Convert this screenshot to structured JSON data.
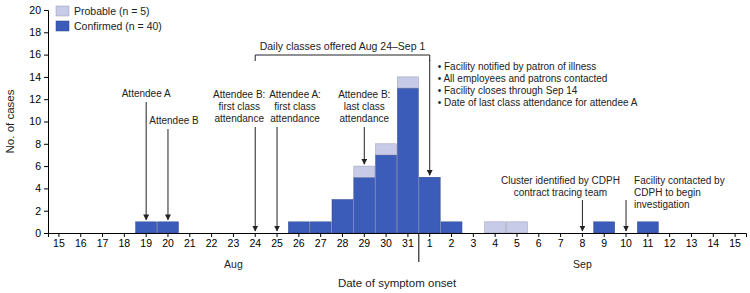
{
  "chart_data": {
    "type": "bar",
    "stacked": true,
    "legend": "upper left",
    "x_label": "Date of symptom onset",
    "y_label": "No. of cases",
    "categories": [
      "15",
      "16",
      "17",
      "18",
      "19",
      "20",
      "21",
      "22",
      "23",
      "24",
      "25",
      "26",
      "27",
      "28",
      "29",
      "30",
      "31",
      "1",
      "2",
      "3",
      "4",
      "5",
      "6",
      "7",
      "8",
      "9",
      "10",
      "11",
      "12",
      "13",
      "14",
      "15"
    ],
    "x_groups": [
      "Aug",
      "Sep"
    ],
    "series": [
      {
        "name": "Confirmed (n = 40)",
        "color": "#3b5cb8",
        "values": [
          0,
          0,
          0,
          0,
          1,
          1,
          0,
          0,
          0,
          0,
          0,
          1,
          1,
          3,
          5,
          7,
          13,
          5,
          1,
          0,
          0,
          0,
          0,
          0,
          0,
          1,
          0,
          1,
          0,
          0,
          0,
          0
        ]
      },
      {
        "name": "Probable (n = 5)",
        "color": "#c7cbe8",
        "values": [
          0,
          0,
          0,
          0,
          0,
          0,
          0,
          0,
          0,
          0,
          0,
          0,
          0,
          0,
          1,
          1,
          1,
          0,
          0,
          0,
          1,
          1,
          0,
          0,
          0,
          0,
          0,
          0,
          0,
          0,
          0,
          0
        ]
      }
    ],
    "ylim": [
      0,
      20
    ],
    "yticks": [
      0,
      2,
      4,
      6,
      8,
      10,
      12,
      14,
      16,
      18,
      20
    ],
    "spans": [
      {
        "text": "Daily classes offered Aug 24–Sep 1",
        "from": {
          "month": "Aug",
          "day": "24"
        },
        "to": {
          "month": "Sep",
          "day": "1"
        }
      }
    ],
    "annotations": [
      {
        "text": [
          "Attendee A"
        ],
        "date": {
          "month": "Aug",
          "day": "19"
        }
      },
      {
        "text": [
          "Attendee B"
        ],
        "date": {
          "month": "Aug",
          "day": "20"
        }
      },
      {
        "text": [
          "Attendee B:",
          "first class",
          "attendance"
        ],
        "date": {
          "month": "Aug",
          "day": "24"
        }
      },
      {
        "text": [
          "Attendee A:",
          "first class",
          "attendance"
        ],
        "date": {
          "month": "Aug",
          "day": "25"
        }
      },
      {
        "text": [
          "Attendee B:",
          "last class",
          "attendance"
        ],
        "date": {
          "month": "Aug",
          "day": "29"
        }
      },
      {
        "text": [
          "• Facility notified by patron of illness",
          "• All employees and patrons contacted",
          "• Facility closes through Sep 14",
          "• Date of last class attendance for attendee A"
        ],
        "date": {
          "month": "Sep",
          "day": "1"
        }
      },
      {
        "text": [
          "Cluster identified by CDPH",
          "contract tracing team"
        ],
        "date": {
          "month": "Sep",
          "day": "8"
        }
      },
      {
        "text": [
          "Facility contacted by",
          "CDPH to begin",
          "investigation"
        ],
        "date": {
          "month": "Sep",
          "day": "10"
        }
      }
    ]
  }
}
